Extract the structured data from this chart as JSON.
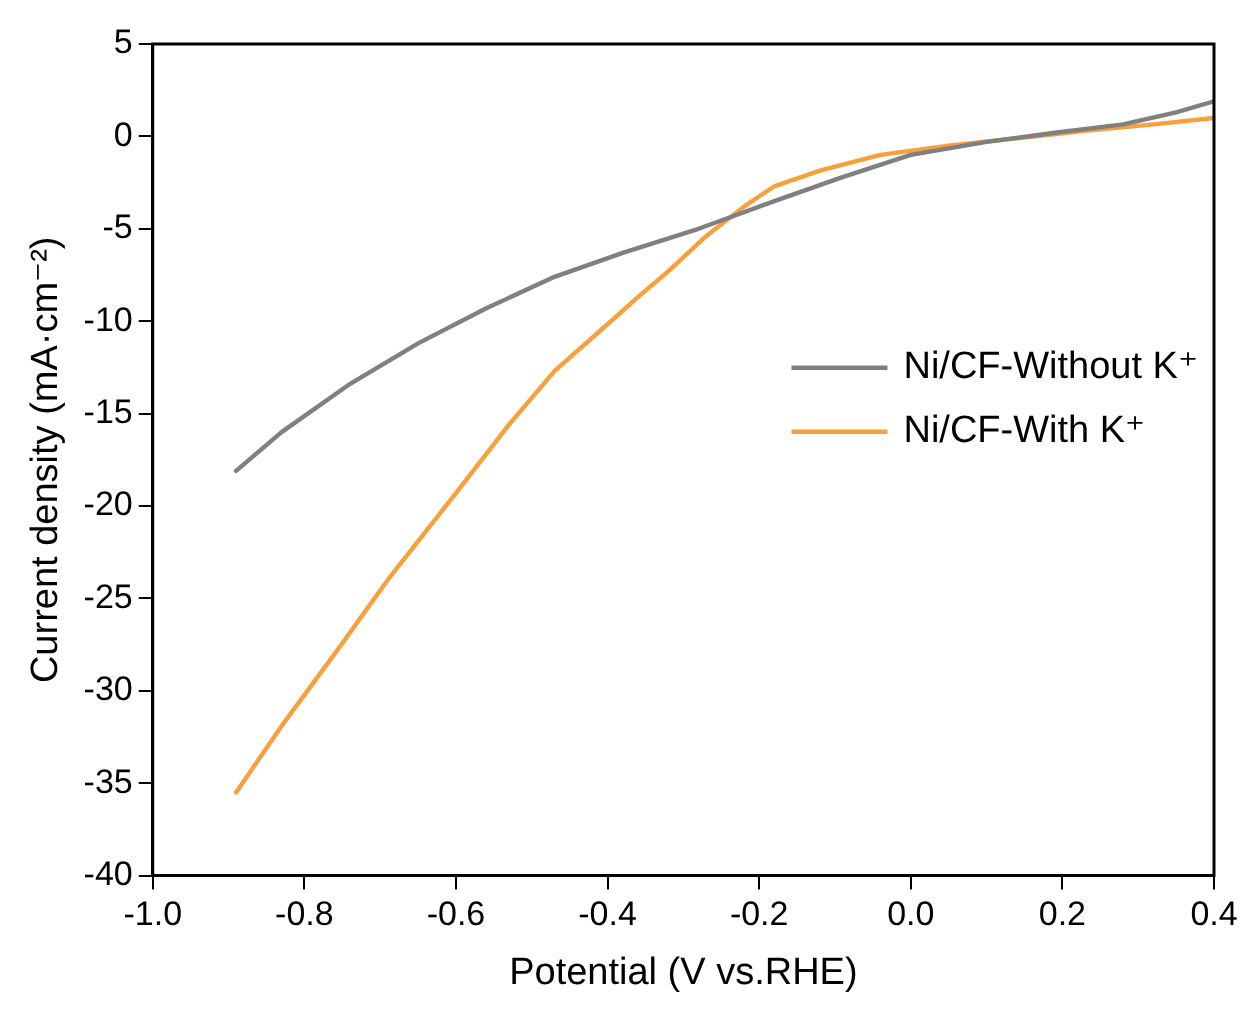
{
  "chart_data": {
    "type": "line",
    "xlabel": "Potential (V vs.RHE)",
    "ylabel": "Current density (mA·cm⁻²)",
    "xlim": [
      -1.0,
      0.4
    ],
    "ylim": [
      -40,
      5
    ],
    "xticks": [
      {
        "value": -1.0,
        "label": "-1.0"
      },
      {
        "value": -0.8,
        "label": "-0.8"
      },
      {
        "value": -0.6,
        "label": "-0.6"
      },
      {
        "value": -0.4,
        "label": "-0.4"
      },
      {
        "value": -0.2,
        "label": "-0.2"
      },
      {
        "value": 0,
        "label": "0.0"
      },
      {
        "value": 0.2,
        "label": "0.2"
      },
      {
        "value": 0.4,
        "label": "0.4"
      }
    ],
    "yticks": [
      -40,
      -35,
      -30,
      -25,
      -20,
      -15,
      -10,
      -5,
      0,
      5
    ],
    "grid": false,
    "legend": "right",
    "marker": "none",
    "line_style": "solid",
    "series": [
      {
        "name": "Ni/CF-Without K⁺",
        "color": "#808080",
        "x": [
          -0.89,
          -0.83,
          -0.74,
          -0.65,
          -0.56,
          -0.47,
          -0.38,
          -0.28,
          -0.24,
          -0.18,
          -0.09,
          0.0,
          0.1,
          0.19,
          0.28,
          0.35,
          0.4
        ],
        "values": [
          -18.1,
          -16.0,
          -13.4,
          -11.2,
          -9.3,
          -7.6,
          -6.3,
          -5.0,
          -4.4,
          -3.5,
          -2.2,
          -1.0,
          -0.3,
          0.2,
          0.65,
          1.3,
          1.9
        ]
      },
      {
        "name": "Ni/CF-With K⁺",
        "color": "#f7a03c",
        "x": [
          -0.89,
          -0.83,
          -0.76,
          -0.69,
          -0.6,
          -0.53,
          -0.47,
          -0.39,
          -0.36,
          -0.32,
          -0.27,
          -0.22,
          -0.18,
          -0.12,
          -0.04,
          0.05,
          0.14,
          0.23,
          0.32,
          0.4
        ],
        "values": [
          -35.5,
          -31.9,
          -28.0,
          -24.0,
          -19.3,
          -15.6,
          -12.7,
          -9.8,
          -8.7,
          -7.3,
          -5.4,
          -3.8,
          -2.7,
          -1.85,
          -1.0,
          -0.5,
          -0.1,
          0.3,
          0.65,
          1.0
        ]
      }
    ]
  }
}
